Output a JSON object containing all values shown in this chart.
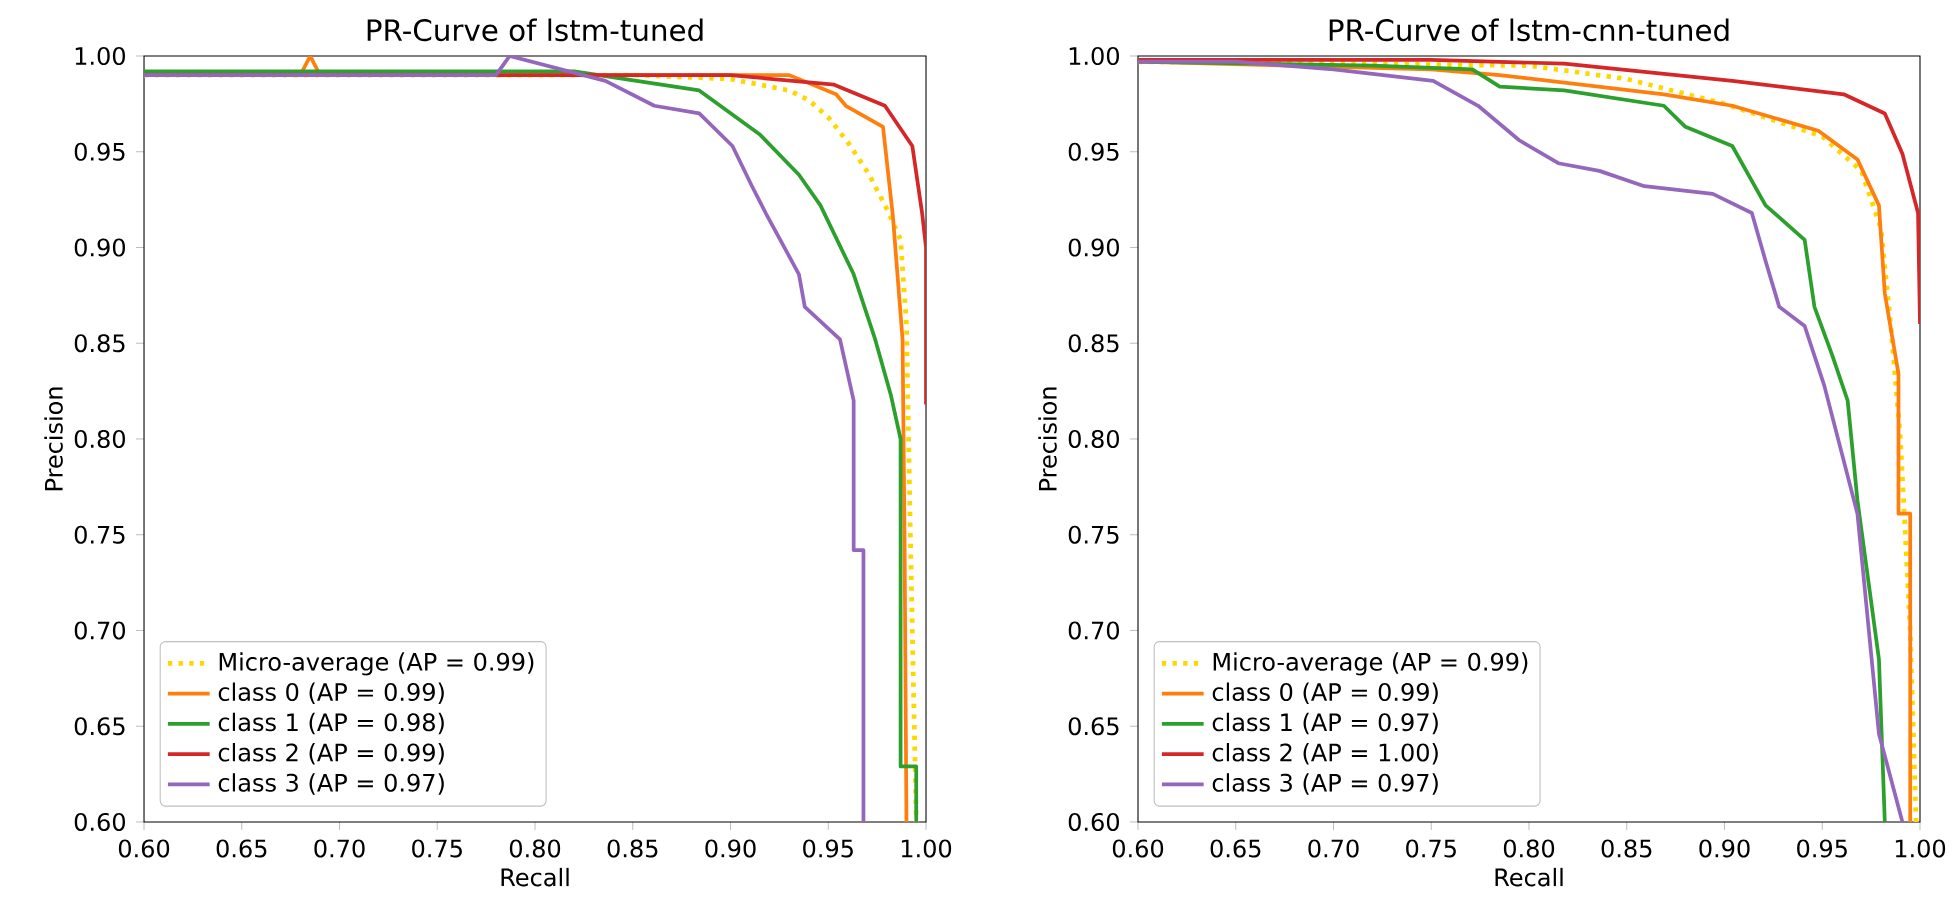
{
  "chart_data": [
    {
      "type": "line",
      "title": "PR-Curve of lstm-tuned",
      "xlabel": "Recall",
      "ylabel": "Precision",
      "xlim": [
        0.6,
        1.0
      ],
      "ylim": [
        0.6,
        1.0
      ],
      "xticks": [
        {
          "value": 0.6,
          "label": "0.60"
        },
        {
          "value": 0.65,
          "label": "0.65"
        },
        {
          "value": 0.7,
          "label": "0.70"
        },
        {
          "value": 0.75,
          "label": "0.75"
        },
        {
          "value": 0.8,
          "label": "0.80"
        },
        {
          "value": 0.85,
          "label": "0.85"
        },
        {
          "value": 0.9,
          "label": "0.90"
        },
        {
          "value": 0.95,
          "label": "0.95"
        },
        {
          "value": 1.0,
          "label": "1.00"
        }
      ],
      "yticks": [
        {
          "value": 0.6,
          "label": "0.60"
        },
        {
          "value": 0.65,
          "label": "0.65"
        },
        {
          "value": 0.7,
          "label": "0.70"
        },
        {
          "value": 0.75,
          "label": "0.75"
        },
        {
          "value": 0.8,
          "label": "0.80"
        },
        {
          "value": 0.85,
          "label": "0.85"
        },
        {
          "value": 0.9,
          "label": "0.90"
        },
        {
          "value": 0.95,
          "label": "0.95"
        },
        {
          "value": 1.0,
          "label": "1.00"
        }
      ],
      "legend": "bottom left",
      "series": [
        {
          "name": "Micro-average (AP = 0.99)",
          "color": "#ffd700",
          "line_style": "dotted",
          "x": [
            0.6,
            0.85,
            0.9,
            0.93,
            0.94,
            0.95,
            0.96,
            0.971,
            0.98,
            0.987,
            0.99,
            0.992,
            0.995
          ],
          "values": [
            0.99,
            0.99,
            0.988,
            0.982,
            0.977,
            0.968,
            0.955,
            0.938,
            0.92,
            0.904,
            0.86,
            0.75,
            0.6
          ]
        },
        {
          "name": "class 0 (AP = 0.99)",
          "color": "#ff7f0e",
          "line_style": "solid",
          "x": [
            0.6,
            0.68,
            0.685,
            0.69,
            0.93,
            0.954,
            0.959,
            0.978,
            0.983,
            0.988,
            0.989,
            0.99
          ],
          "values": [
            0.99,
            0.99,
            1.0,
            0.99,
            0.99,
            0.98,
            0.974,
            0.963,
            0.917,
            0.852,
            0.75,
            0.6
          ]
        },
        {
          "name": "class 1 (AP = 0.98)",
          "color": "#2ca02c",
          "line_style": "solid",
          "x": [
            0.6,
            0.82,
            0.884,
            0.915,
            0.935,
            0.946,
            0.963,
            0.974,
            0.982,
            0.987,
            0.987,
            0.995,
            0.995
          ],
          "values": [
            0.992,
            0.992,
            0.982,
            0.959,
            0.938,
            0.922,
            0.886,
            0.852,
            0.823,
            0.8,
            0.629,
            0.629,
            0.6
          ]
        },
        {
          "name": "class 2 (AP = 0.99)",
          "color": "#d62728",
          "line_style": "solid",
          "x": [
            0.6,
            0.9,
            0.953,
            0.979,
            0.993,
            0.998,
            1.0,
            1.0
          ],
          "values": [
            0.99,
            0.99,
            0.985,
            0.974,
            0.953,
            0.918,
            0.9,
            0.818
          ]
        },
        {
          "name": "class 3 (AP = 0.97)",
          "color": "#9467bd",
          "line_style": "solid",
          "x": [
            0.6,
            0.78,
            0.787,
            0.836,
            0.861,
            0.884,
            0.901,
            0.911,
            0.918,
            0.935,
            0.938,
            0.956,
            0.963,
            0.963,
            0.968,
            0.968
          ],
          "values": [
            0.99,
            0.99,
            1.0,
            0.987,
            0.974,
            0.97,
            0.953,
            0.932,
            0.918,
            0.886,
            0.869,
            0.852,
            0.82,
            0.742,
            0.742,
            0.6
          ]
        }
      ]
    },
    {
      "type": "line",
      "title": "PR-Curve of lstm-cnn-tuned",
      "xlabel": "Recall",
      "ylabel": "Precision",
      "xlim": [
        0.6,
        1.0
      ],
      "ylim": [
        0.6,
        1.0
      ],
      "xticks": [
        {
          "value": 0.6,
          "label": "0.60"
        },
        {
          "value": 0.65,
          "label": "0.65"
        },
        {
          "value": 0.7,
          "label": "0.70"
        },
        {
          "value": 0.75,
          "label": "0.75"
        },
        {
          "value": 0.8,
          "label": "0.80"
        },
        {
          "value": 0.85,
          "label": "0.85"
        },
        {
          "value": 0.9,
          "label": "0.90"
        },
        {
          "value": 0.95,
          "label": "0.95"
        },
        {
          "value": 1.0,
          "label": "1.00"
        }
      ],
      "yticks": [
        {
          "value": 0.6,
          "label": "0.60"
        },
        {
          "value": 0.65,
          "label": "0.65"
        },
        {
          "value": 0.7,
          "label": "0.70"
        },
        {
          "value": 0.75,
          "label": "0.75"
        },
        {
          "value": 0.8,
          "label": "0.80"
        },
        {
          "value": 0.85,
          "label": "0.85"
        },
        {
          "value": 0.9,
          "label": "0.90"
        },
        {
          "value": 0.95,
          "label": "0.95"
        },
        {
          "value": 1.0,
          "label": "1.00"
        }
      ],
      "legend": "bottom left",
      "series": [
        {
          "name": "Micro-average (AP = 0.99)",
          "color": "#ffd700",
          "line_style": "dotted",
          "x": [
            0.6,
            0.8,
            0.85,
            0.9,
            0.95,
            0.97,
            0.98,
            0.985,
            0.99,
            0.995,
            0.998
          ],
          "values": [
            0.997,
            0.995,
            0.988,
            0.975,
            0.958,
            0.94,
            0.91,
            0.86,
            0.8,
            0.7,
            0.6
          ]
        },
        {
          "name": "class 0 (AP = 0.99)",
          "color": "#ff7f0e",
          "line_style": "solid",
          "x": [
            0.6,
            0.75,
            0.785,
            0.869,
            0.904,
            0.948,
            0.968,
            0.979,
            0.982,
            0.989,
            0.989,
            0.995,
            0.995
          ],
          "values": [
            0.997,
            0.993,
            0.99,
            0.98,
            0.974,
            0.961,
            0.946,
            0.922,
            0.876,
            0.834,
            0.761,
            0.761,
            0.6
          ]
        },
        {
          "name": "class 1 (AP = 0.97)",
          "color": "#2ca02c",
          "line_style": "solid",
          "x": [
            0.6,
            0.72,
            0.771,
            0.785,
            0.818,
            0.869,
            0.88,
            0.904,
            0.921,
            0.941,
            0.946,
            0.955,
            0.963,
            0.968,
            0.979,
            0.982
          ],
          "values": [
            0.997,
            0.995,
            0.993,
            0.984,
            0.982,
            0.974,
            0.963,
            0.953,
            0.922,
            0.904,
            0.869,
            0.844,
            0.82,
            0.768,
            0.685,
            0.6
          ]
        },
        {
          "name": "class 2 (AP = 1.00)",
          "color": "#d62728",
          "line_style": "solid",
          "x": [
            0.6,
            0.75,
            0.818,
            0.904,
            0.961,
            0.982,
            0.991,
            0.999,
            1.0
          ],
          "values": [
            0.998,
            0.998,
            0.996,
            0.987,
            0.98,
            0.97,
            0.949,
            0.918,
            0.86
          ]
        },
        {
          "name": "class 3 (AP = 0.97)",
          "color": "#9467bd",
          "line_style": "solid",
          "x": [
            0.6,
            0.65,
            0.7,
            0.751,
            0.774,
            0.795,
            0.815,
            0.836,
            0.859,
            0.894,
            0.914,
            0.921,
            0.928,
            0.941,
            0.951,
            0.968,
            0.979,
            0.991
          ],
          "values": [
            0.997,
            0.997,
            0.993,
            0.987,
            0.974,
            0.956,
            0.944,
            0.94,
            0.932,
            0.928,
            0.918,
            0.893,
            0.869,
            0.859,
            0.828,
            0.761,
            0.646,
            0.6
          ]
        }
      ]
    }
  ]
}
